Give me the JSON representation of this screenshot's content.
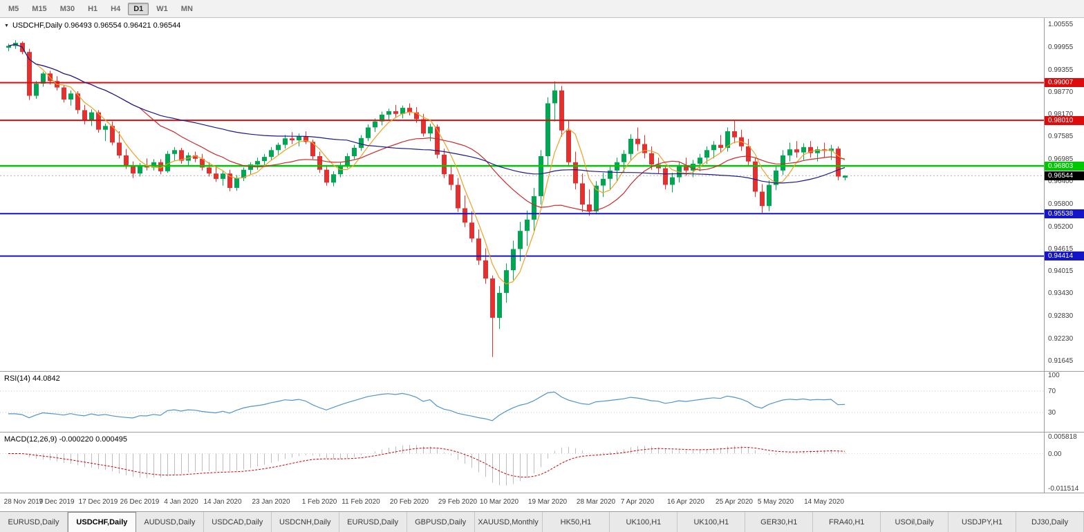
{
  "toolbar": {
    "timeframes": [
      {
        "label": "M5",
        "active": false
      },
      {
        "label": "M15",
        "active": false
      },
      {
        "label": "M30",
        "active": false
      },
      {
        "label": "H1",
        "active": false
      },
      {
        "label": "H4",
        "active": false
      },
      {
        "label": "D1",
        "active": true
      },
      {
        "label": "W1",
        "active": false
      },
      {
        "label": "MN",
        "active": false
      }
    ]
  },
  "main_chart": {
    "title": "USDCHF,Daily 0.96493 0.96554 0.96421 0.96544",
    "axis_labels": [
      "1.00555",
      "0.99955",
      "0.99355",
      "0.98770",
      "0.98170",
      "0.97585",
      "0.96985",
      "0.96400",
      "0.95800",
      "0.95200",
      "0.94615",
      "0.94015",
      "0.93430",
      "0.92830",
      "0.92230",
      "0.91645"
    ],
    "levels": [
      {
        "price": 0.99007,
        "label": "0.99007",
        "color": "#dd0c0c",
        "width": 2
      },
      {
        "price": 0.9801,
        "label": "0.98010",
        "color": "#dd0c0c",
        "width": 2
      },
      {
        "price": 0.96803,
        "label": "0.96803",
        "color": "#00c800",
        "width": 2.5
      },
      {
        "price": 0.95538,
        "label": "0.95538",
        "color": "#1414c8",
        "width": 2
      },
      {
        "price": 0.94414,
        "label": "0.94414",
        "color": "#1414c8",
        "width": 2
      }
    ],
    "current_price": {
      "value": 0.96544,
      "label": "0.96544",
      "bg": "#000000"
    }
  },
  "colors": {
    "candle_up": "#00a651",
    "candle_down": "#e53030",
    "current_price_line": "#b0b0b0"
  },
  "chart_data": {
    "type": "candlestick",
    "symbol": "USDCHF",
    "timeframe": "Daily",
    "ylim": [
      0.9137,
      1.0072
    ],
    "moving_averages": [
      {
        "period": 5,
        "color": "#efa020"
      },
      {
        "period": 20,
        "color": "#cc2929"
      },
      {
        "period": 50,
        "color": "#1a1a8f"
      }
    ],
    "x_ticks": [
      {
        "label": "28 Nov 2019",
        "i": 0
      },
      {
        "label": "7 Dec 2019",
        "i": 7
      },
      {
        "label": "17 Dec 2019",
        "i": 13
      },
      {
        "label": "26 Dec 2019",
        "i": 19
      },
      {
        "label": "4 Jan 2020",
        "i": 25
      },
      {
        "label": "14 Jan 2020",
        "i": 31
      },
      {
        "label": "23 Jan 2020",
        "i": 38
      },
      {
        "label": "1 Feb 2020",
        "i": 45
      },
      {
        "label": "11 Feb 2020",
        "i": 51
      },
      {
        "label": "20 Feb 2020",
        "i": 58
      },
      {
        "label": "29 Feb 2020",
        "i": 65
      },
      {
        "label": "10 Mar 2020",
        "i": 71
      },
      {
        "label": "19 Mar 2020",
        "i": 78
      },
      {
        "label": "28 Mar 2020",
        "i": 85
      },
      {
        "label": "7 Apr 2020",
        "i": 91
      },
      {
        "label": "16 Apr 2020",
        "i": 98
      },
      {
        "label": "25 Apr 2020",
        "i": 105
      },
      {
        "label": "5 May 2020",
        "i": 111
      },
      {
        "label": "14 May 2020",
        "i": 118
      }
    ],
    "ohlc": [
      [
        0.9993,
        1.0004,
        0.9984,
        0.9998
      ],
      [
        0.9998,
        1.0013,
        0.999,
        1.0006
      ],
      [
        1.0006,
        1.001,
        0.9976,
        0.9982
      ],
      [
        0.9982,
        0.999,
        0.9855,
        0.9866
      ],
      [
        0.9866,
        0.9905,
        0.9858,
        0.9898
      ],
      [
        0.9898,
        0.993,
        0.989,
        0.9925
      ],
      [
        0.9925,
        0.9932,
        0.9896,
        0.9905
      ],
      [
        0.9905,
        0.9918,
        0.988,
        0.9888
      ],
      [
        0.9888,
        0.9895,
        0.9848,
        0.9856
      ],
      [
        0.9856,
        0.988,
        0.984,
        0.9872
      ],
      [
        0.9872,
        0.9878,
        0.9818,
        0.9828
      ],
      [
        0.9828,
        0.9842,
        0.979,
        0.98
      ],
      [
        0.98,
        0.983,
        0.9786,
        0.9822
      ],
      [
        0.9822,
        0.9828,
        0.9768,
        0.9776
      ],
      [
        0.9776,
        0.9792,
        0.9746,
        0.9786
      ],
      [
        0.9786,
        0.9798,
        0.9735,
        0.9742
      ],
      [
        0.9742,
        0.9772,
        0.97,
        0.9708
      ],
      [
        0.9708,
        0.9725,
        0.9672,
        0.968
      ],
      [
        0.968,
        0.9692,
        0.9648,
        0.966
      ],
      [
        0.966,
        0.9688,
        0.9652,
        0.9682
      ],
      [
        0.9682,
        0.97,
        0.9668,
        0.9676
      ],
      [
        0.9676,
        0.9698,
        0.9668,
        0.969
      ],
      [
        0.969,
        0.9698,
        0.9658,
        0.9666
      ],
      [
        0.9666,
        0.972,
        0.9662,
        0.9712
      ],
      [
        0.9712,
        0.973,
        0.9694,
        0.9722
      ],
      [
        0.9722,
        0.9728,
        0.9686,
        0.9694
      ],
      [
        0.9694,
        0.9716,
        0.968,
        0.9708
      ],
      [
        0.9708,
        0.9718,
        0.969,
        0.9699
      ],
      [
        0.9699,
        0.9712,
        0.9668,
        0.9676
      ],
      [
        0.9676,
        0.969,
        0.9652,
        0.966
      ],
      [
        0.966,
        0.9678,
        0.9638,
        0.9646
      ],
      [
        0.9646,
        0.9668,
        0.9628,
        0.966
      ],
      [
        0.966,
        0.967,
        0.9613,
        0.9622
      ],
      [
        0.9622,
        0.9656,
        0.9614,
        0.9648
      ],
      [
        0.9648,
        0.9676,
        0.964,
        0.967
      ],
      [
        0.967,
        0.969,
        0.9658,
        0.9684
      ],
      [
        0.9684,
        0.9702,
        0.967,
        0.9693
      ],
      [
        0.9693,
        0.9712,
        0.968,
        0.9704
      ],
      [
        0.9704,
        0.973,
        0.9696,
        0.9722
      ],
      [
        0.9722,
        0.9742,
        0.971,
        0.9736
      ],
      [
        0.9736,
        0.9762,
        0.9726,
        0.9753
      ],
      [
        0.9753,
        0.977,
        0.9738,
        0.9748
      ],
      [
        0.9748,
        0.9766,
        0.9732,
        0.9758
      ],
      [
        0.9758,
        0.9772,
        0.9738,
        0.9744
      ],
      [
        0.9744,
        0.975,
        0.9698,
        0.9706
      ],
      [
        0.9706,
        0.9718,
        0.9662,
        0.967
      ],
      [
        0.967,
        0.968,
        0.9628,
        0.9636
      ],
      [
        0.9636,
        0.9666,
        0.9626,
        0.9658
      ],
      [
        0.9658,
        0.969,
        0.965,
        0.9682
      ],
      [
        0.9682,
        0.9714,
        0.9674,
        0.9706
      ],
      [
        0.9706,
        0.9736,
        0.9698,
        0.9728
      ],
      [
        0.9728,
        0.9762,
        0.972,
        0.9754
      ],
      [
        0.9754,
        0.979,
        0.9746,
        0.9782
      ],
      [
        0.9782,
        0.9806,
        0.977,
        0.9798
      ],
      [
        0.9798,
        0.9824,
        0.9788,
        0.9816
      ],
      [
        0.9816,
        0.9832,
        0.98,
        0.9825
      ],
      [
        0.9825,
        0.9842,
        0.981,
        0.9818
      ],
      [
        0.9818,
        0.984,
        0.9806,
        0.9834
      ],
      [
        0.9834,
        0.9846,
        0.9814,
        0.9822
      ],
      [
        0.9822,
        0.9836,
        0.9794,
        0.9804
      ],
      [
        0.9804,
        0.9818,
        0.9758,
        0.9766
      ],
      [
        0.9766,
        0.9792,
        0.9746,
        0.9784
      ],
      [
        0.9784,
        0.979,
        0.97,
        0.971
      ],
      [
        0.971,
        0.9726,
        0.9648,
        0.9658
      ],
      [
        0.9658,
        0.968,
        0.9616,
        0.963
      ],
      [
        0.963,
        0.9648,
        0.9558,
        0.9568
      ],
      [
        0.9568,
        0.9602,
        0.9518,
        0.953
      ],
      [
        0.953,
        0.956,
        0.9478,
        0.9488
      ],
      [
        0.9488,
        0.9512,
        0.9418,
        0.943
      ],
      [
        0.943,
        0.9462,
        0.9368,
        0.9382
      ],
      [
        0.9382,
        0.939,
        0.9174,
        0.9278
      ],
      [
        0.9278,
        0.9362,
        0.9248,
        0.9344
      ],
      [
        0.9344,
        0.9422,
        0.9318,
        0.9404
      ],
      [
        0.9404,
        0.9482,
        0.9378,
        0.946
      ],
      [
        0.946,
        0.9532,
        0.9428,
        0.9508
      ],
      [
        0.9508,
        0.9562,
        0.9468,
        0.9538
      ],
      [
        0.9538,
        0.9622,
        0.9508,
        0.96
      ],
      [
        0.96,
        0.9722,
        0.9578,
        0.9706
      ],
      [
        0.9706,
        0.9862,
        0.9678,
        0.9846
      ],
      [
        0.9846,
        0.9904,
        0.9798,
        0.988
      ],
      [
        0.988,
        0.9892,
        0.9758,
        0.9774
      ],
      [
        0.9774,
        0.98,
        0.9678,
        0.969
      ],
      [
        0.969,
        0.9718,
        0.9618,
        0.9634
      ],
      [
        0.9634,
        0.966,
        0.9558,
        0.9578
      ],
      [
        0.9578,
        0.9618,
        0.9548,
        0.956
      ],
      [
        0.956,
        0.964,
        0.9552,
        0.9628
      ],
      [
        0.9628,
        0.9662,
        0.9598,
        0.9646
      ],
      [
        0.9646,
        0.9682,
        0.9618,
        0.9668
      ],
      [
        0.9668,
        0.9702,
        0.964,
        0.969
      ],
      [
        0.969,
        0.9722,
        0.9662,
        0.9712
      ],
      [
        0.9712,
        0.9764,
        0.9696,
        0.9752
      ],
      [
        0.9752,
        0.9782,
        0.972,
        0.9738
      ],
      [
        0.9738,
        0.9762,
        0.97,
        0.9714
      ],
      [
        0.9714,
        0.9732,
        0.967,
        0.9684
      ],
      [
        0.9684,
        0.9702,
        0.966,
        0.9674
      ],
      [
        0.9674,
        0.9682,
        0.9618,
        0.963
      ],
      [
        0.963,
        0.9662,
        0.961,
        0.965
      ],
      [
        0.965,
        0.9692,
        0.9636,
        0.9682
      ],
      [
        0.9682,
        0.9702,
        0.9654,
        0.9668
      ],
      [
        0.9668,
        0.9696,
        0.965,
        0.9686
      ],
      [
        0.9686,
        0.9712,
        0.9666,
        0.9702
      ],
      [
        0.9702,
        0.9732,
        0.9686,
        0.9722
      ],
      [
        0.9722,
        0.9746,
        0.97,
        0.9736
      ],
      [
        0.9736,
        0.9762,
        0.9716,
        0.9728
      ],
      [
        0.9728,
        0.9782,
        0.9718,
        0.9772
      ],
      [
        0.9772,
        0.9802,
        0.974,
        0.9756
      ],
      [
        0.9756,
        0.9776,
        0.972,
        0.9732
      ],
      [
        0.9732,
        0.9752,
        0.968,
        0.9692
      ],
      [
        0.9692,
        0.9702,
        0.9598,
        0.9612
      ],
      [
        0.9612,
        0.9632,
        0.9556,
        0.9574
      ],
      [
        0.9574,
        0.9642,
        0.956,
        0.963
      ],
      [
        0.963,
        0.9682,
        0.9616,
        0.9668
      ],
      [
        0.9668,
        0.9722,
        0.9656,
        0.9708
      ],
      [
        0.9708,
        0.9742,
        0.9692,
        0.9724
      ],
      [
        0.9724,
        0.9746,
        0.9702,
        0.9716
      ],
      [
        0.9716,
        0.974,
        0.9696,
        0.973
      ],
      [
        0.973,
        0.9746,
        0.9702,
        0.9714
      ],
      [
        0.9714,
        0.9732,
        0.9692,
        0.9724
      ],
      [
        0.9724,
        0.9742,
        0.9702,
        0.972
      ],
      [
        0.972,
        0.9736,
        0.9696,
        0.9726
      ],
      [
        0.9726,
        0.9732,
        0.9642,
        0.9652
      ],
      [
        0.96493,
        0.96554,
        0.96421,
        0.96544
      ]
    ]
  },
  "rsi": {
    "label": "RSI(14) 44.0842",
    "period": 14,
    "levels": [
      70,
      30
    ],
    "axis_labels": [
      "100",
      "70",
      "30"
    ],
    "color": "#4f94cd"
  },
  "macd": {
    "label": "MACD(12,26,9) -0.000220 0.000495",
    "fast": 12,
    "slow": 26,
    "signal": 9,
    "axis_labels": [
      "0.005818",
      "0.00",
      "-0.011514"
    ],
    "range": [
      -0.011514,
      0.005818
    ],
    "hist_color": "#bdbdbd",
    "signal_color": "#cc0000"
  },
  "tabs": {
    "active_index": 1,
    "items": [
      "EURUSD,Daily",
      "USDCHF,Daily",
      "AUDUSD,Daily",
      "USDCAD,Daily",
      "USDCNH,Daily",
      "EURUSD,Daily",
      "GBPUSD,Daily",
      "XAUUSD,Monthly",
      "HK50,H1",
      "UK100,H1",
      "UK100,H1",
      "GER30,H1",
      "FRA40,H1",
      "USOil,Daily",
      "USDJPY,H1",
      "DJ30,Daily"
    ]
  }
}
